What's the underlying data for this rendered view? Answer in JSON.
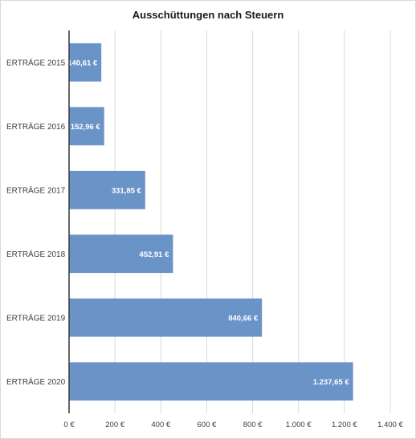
{
  "chart_data": {
    "type": "bar",
    "orientation": "horizontal",
    "title": "Ausschüttungen nach Steuern",
    "categories": [
      "ERTRÄGE 2015",
      "ERTRÄGE 2016",
      "ERTRÄGE 2017",
      "ERTRÄGE 2018",
      "ERTRÄGE 2019",
      "ERTRÄGE 2020"
    ],
    "values": [
      140.61,
      152.96,
      331.85,
      452.91,
      840.66,
      1237.65
    ],
    "data_labels": [
      "140,61 €",
      "152,96 €",
      "331,85 €",
      "452,91 €",
      "840,66 €",
      "1.237,65 €"
    ],
    "xlim": [
      0,
      1400
    ],
    "x_ticks": [
      0,
      200,
      400,
      600,
      800,
      1000,
      1200,
      1400
    ],
    "x_tick_labels": [
      "0 €",
      "200 €",
      "400 €",
      "600 €",
      "800 €",
      "1.000 €",
      "1.200 €",
      "1.400 €"
    ],
    "grid": true,
    "legend": "none",
    "colors": {
      "bar": "#6a93c8",
      "grid": "#d9d9d9",
      "text": "#404040"
    }
  }
}
